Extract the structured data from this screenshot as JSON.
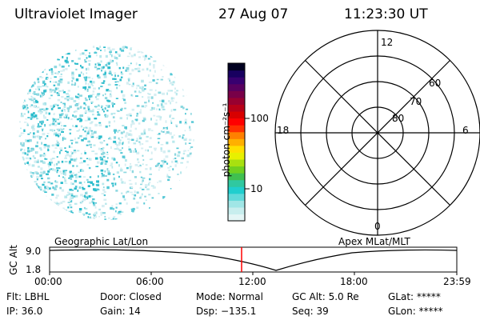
{
  "header": {
    "title": "Ultraviolet Imager",
    "date": "27 Aug 07",
    "time": "11:23:30 UT"
  },
  "colorbar": {
    "unit_label": "photon cm⁻²s⁻¹",
    "ticks": [
      "100",
      "10"
    ],
    "colors": [
      "#e4f6f6",
      "#c8eeee",
      "#a0e6e6",
      "#60dada",
      "#20cece",
      "#30c8a0",
      "#40c050",
      "#70d020",
      "#a8e010",
      "#e8f000",
      "#ffe000",
      "#ffb000",
      "#ff8000",
      "#ff3000",
      "#ff0000",
      "#d80000",
      "#b80018",
      "#980030",
      "#780048",
      "#580060",
      "#380070",
      "#180060",
      "#000020"
    ]
  },
  "polar": {
    "top_label": "12",
    "bottom_label": "0",
    "left_label": "18",
    "right_label": "6",
    "ring_labels": [
      "60",
      "70",
      "80"
    ]
  },
  "track": {
    "y_axis_label": "GC Alt",
    "y_ticks": [
      "9.0",
      "1.8"
    ],
    "left_title": "Geographic Lat/Lon",
    "right_title": "Apex MLat/MLT",
    "x_ticks": [
      "00:00",
      "06:00",
      "12:00",
      "18:00",
      "23:59"
    ],
    "marker_color": "#ff0000"
  },
  "status": {
    "row1": [
      "Flt: LBHL",
      "Door: Closed",
      "Mode: Normal",
      "GC Alt: 5.0 Re",
      "GLat: *****"
    ],
    "row2": [
      "IP: 36.0",
      "Gain: 14",
      "Dsp: −135.1",
      "Seq: 39",
      "GLon: *****"
    ]
  },
  "image": {
    "speckle_colors": [
      "#b8e8ec",
      "#8ed8e0",
      "#56c8d6",
      "#d6eef2",
      "#2cbccc"
    ]
  }
}
